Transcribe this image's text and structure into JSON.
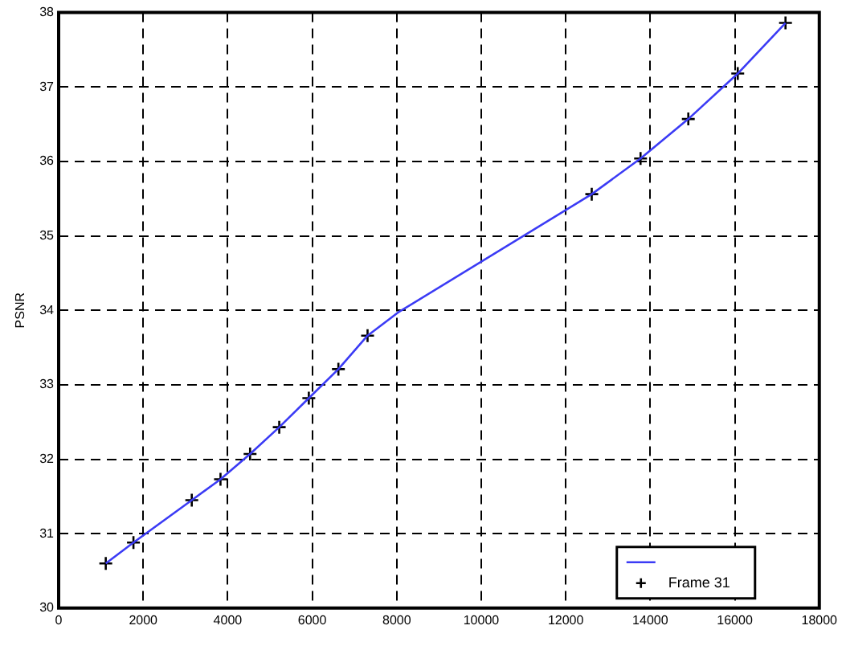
{
  "chart_data": {
    "type": "line",
    "ylabel": "PSNR",
    "xlim": [
      0,
      18000
    ],
    "xticks": [
      0,
      2000,
      4000,
      6000,
      8000,
      10000,
      12000,
      14000,
      16000,
      18000
    ],
    "ylim": [
      30,
      38
    ],
    "yticks": [
      30,
      31,
      32,
      33,
      34,
      35,
      36,
      37,
      38
    ],
    "grid": true,
    "legend": "bottom right",
    "series": [
      {
        "color": "#3b3bf5",
        "marker": "none",
        "line_style": "solid",
        "x": [
          1115,
          1770,
          3150,
          3830,
          4530,
          5220,
          5920,
          6620,
          7310,
          8030,
          12615,
          13770,
          14900,
          16070,
          17200
        ],
        "values": [
          30.6,
          30.88,
          31.45,
          31.73,
          32.07,
          32.43,
          32.82,
          33.21,
          33.66,
          33.97,
          35.56,
          36.04,
          36.57,
          37.18,
          37.86
        ]
      },
      {
        "type": "scatter",
        "name": "Frame 31",
        "color": "#000000",
        "marker": "cross",
        "x": [
          1115,
          1770,
          3150,
          3830,
          4530,
          5220,
          5920,
          6620,
          7310,
          12615,
          13770,
          14900,
          16070,
          17200
        ],
        "values": [
          30.6,
          30.88,
          31.45,
          31.73,
          32.07,
          32.43,
          32.82,
          33.21,
          33.66,
          35.56,
          36.04,
          36.57,
          37.18,
          37.86
        ]
      }
    ]
  }
}
